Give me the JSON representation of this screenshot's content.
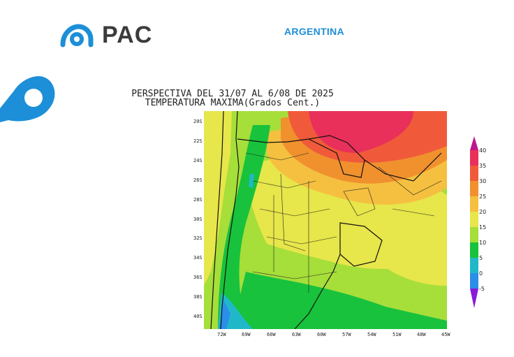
{
  "header": {
    "logo_text": "PAC",
    "country": "ARGENTINA"
  },
  "map": {
    "title_line1": "PERSPECTIVA DEL 31/07 AL 6/08 DE 2025",
    "title_line2": "TEMPERATURA MAXIMA(Grados Cent.)",
    "lat_labels": [
      "20S",
      "22S",
      "24S",
      "26S",
      "28S",
      "30S",
      "32S",
      "34S",
      "36S",
      "38S",
      "40S"
    ],
    "lon_labels": [
      "72W",
      "69W",
      "66W",
      "63W",
      "60W",
      "57W",
      "54W",
      "51W",
      "48W",
      "45W"
    ],
    "colorbar_labels": [
      "40",
      "35",
      "30",
      "25",
      "20",
      "15",
      "10",
      "5",
      "0",
      "-5"
    ],
    "colors": {
      "c40": "#e8305a",
      "c35": "#f05a3a",
      "c30": "#f0912e",
      "c25": "#f5c040",
      "c20": "#e7e64a",
      "c15": "#a6de3a",
      "c10": "#18c23c",
      "c5": "#20b8c8",
      "c0": "#2b8ee8",
      "cm5": "#3540d8",
      "top": "#c0168c",
      "bottom": "#8a1ad8"
    }
  }
}
